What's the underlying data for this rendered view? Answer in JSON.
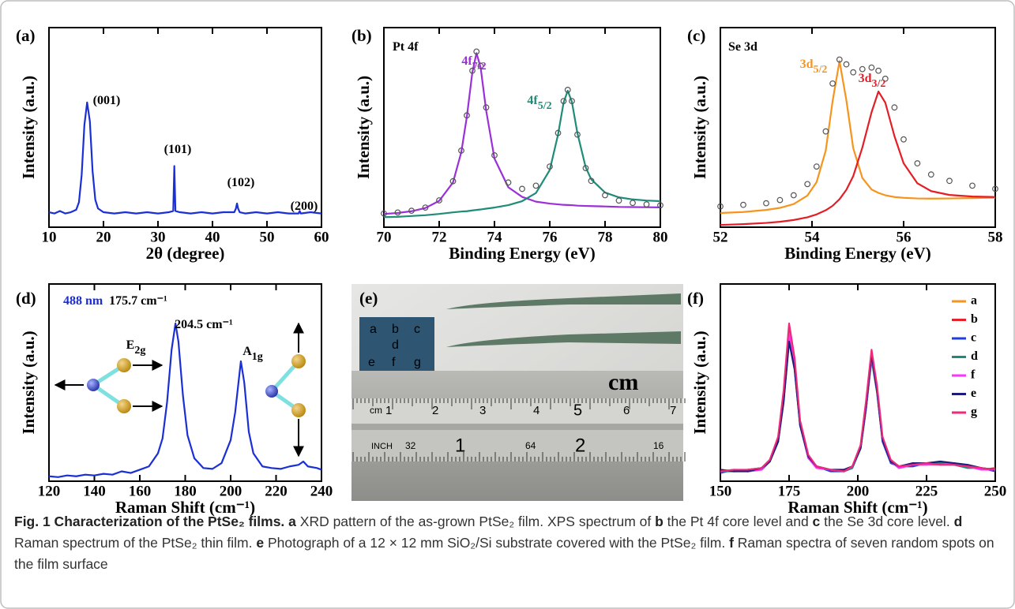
{
  "chart_data": [
    {
      "type": "line",
      "panel_label": "(a)",
      "x_label": "2θ (degree)",
      "y_label": "Intensity (a.u.)",
      "xlim": [
        10,
        60
      ],
      "xticks": [
        10,
        20,
        30,
        40,
        50,
        60
      ],
      "ylim": [
        0,
        1.6
      ],
      "x": [
        10,
        11,
        12,
        13,
        14,
        15,
        15.5,
        16,
        16.5,
        17,
        17.5,
        18,
        18.5,
        19,
        20,
        22,
        24,
        26,
        28,
        30,
        32,
        32.8,
        33,
        33.2,
        34,
        36,
        38,
        40,
        42,
        44,
        44.3,
        44.5,
        44.7,
        45,
        46,
        48,
        50,
        52,
        54,
        55.8,
        56,
        56.2,
        58,
        60
      ],
      "series": [
        {
          "color": "#1a2fd6",
          "values": [
            0.12,
            0.11,
            0.13,
            0.11,
            0.12,
            0.14,
            0.2,
            0.42,
            0.82,
            1.0,
            0.85,
            0.45,
            0.22,
            0.15,
            0.12,
            0.11,
            0.12,
            0.11,
            0.12,
            0.11,
            0.12,
            0.13,
            0.49,
            0.13,
            0.12,
            0.11,
            0.12,
            0.11,
            0.12,
            0.12,
            0.15,
            0.19,
            0.15,
            0.12,
            0.11,
            0.12,
            0.11,
            0.12,
            0.11,
            0.11,
            0.13,
            0.11,
            0.12,
            0.11
          ]
        }
      ],
      "annotations": [
        {
          "text": "(001)"
        },
        {
          "text": "(101)"
        },
        {
          "text": "(102)"
        },
        {
          "text": "(200)"
        }
      ]
    },
    {
      "type": "line",
      "panel_label": "(b)",
      "x_label": "Binding Energy (eV)",
      "y_label": "Intensity (a.u.)",
      "xlim": [
        70,
        80
      ],
      "xticks": [
        70,
        72,
        74,
        76,
        78,
        80
      ],
      "ylim": [
        0,
        1.25
      ],
      "x": [
        70,
        70.5,
        71,
        71.5,
        72,
        72.5,
        72.8,
        73,
        73.2,
        73.35,
        73.5,
        73.7,
        74,
        74.5,
        75,
        75.5,
        76,
        76.3,
        76.5,
        76.65,
        76.8,
        77,
        77.3,
        77.5,
        78,
        78.5,
        79,
        79.5,
        80
      ],
      "series": [
        {
          "color": "#9b30d9",
          "values": [
            0.083,
            0.089,
            0.1,
            0.12,
            0.165,
            0.28,
            0.47,
            0.69,
            0.97,
            1.09,
            1.0,
            0.73,
            0.43,
            0.25,
            0.19,
            0.16,
            0.148,
            0.143,
            0.14,
            0.139,
            0.138,
            0.135,
            0.133,
            0.132,
            0.13,
            0.127,
            0.126,
            0.125,
            0.124
          ]
        },
        {
          "color": "#1e8c78",
          "values": [
            0.063,
            0.065,
            0.07,
            0.075,
            0.083,
            0.093,
            0.098,
            0.1,
            0.105,
            0.108,
            0.111,
            0.116,
            0.123,
            0.138,
            0.163,
            0.214,
            0.358,
            0.58,
            0.78,
            0.855,
            0.785,
            0.589,
            0.375,
            0.3,
            0.217,
            0.187,
            0.174,
            0.167,
            0.163
          ]
        },
        {
          "color": "#555555",
          "style": "markers",
          "values": [
            0.086,
            0.092,
            0.103,
            0.123,
            0.168,
            0.288,
            0.48,
            0.7,
            0.98,
            1.1,
            1.01,
            0.75,
            0.45,
            0.28,
            0.24,
            0.26,
            0.38,
            0.59,
            0.79,
            0.86,
            0.79,
            0.58,
            0.37,
            0.29,
            0.2,
            0.167,
            0.152,
            0.143,
            0.137
          ]
        }
      ],
      "annotations": [
        {
          "text": "Pt 4f"
        },
        {
          "text": "4f",
          "sub": "7/2",
          "color": "#9b30d9"
        },
        {
          "text": "4f",
          "sub": "5/2",
          "color": "#1e8c78"
        }
      ]
    },
    {
      "type": "line",
      "panel_label": "(c)",
      "x_label": "Binding Energy (eV)",
      "y_label": "Intensity (a.u.)",
      "xlim": [
        52,
        58
      ],
      "xticks": [
        52,
        54,
        56,
        58
      ],
      "ylim": [
        0,
        1.25
      ],
      "x": [
        52,
        52.5,
        53,
        53.3,
        53.6,
        53.9,
        54.1,
        54.3,
        54.45,
        54.6,
        54.75,
        54.9,
        55.1,
        55.3,
        55.45,
        55.6,
        55.8,
        56,
        56.3,
        56.6,
        57,
        57.5,
        58
      ],
      "series": [
        {
          "color": "#f7941d",
          "values": [
            0.089,
            0.095,
            0.108,
            0.121,
            0.145,
            0.198,
            0.282,
            0.48,
            0.79,
            1.04,
            0.795,
            0.495,
            0.308,
            0.236,
            0.215,
            0.2,
            0.189,
            0.184,
            0.18,
            0.179,
            0.18,
            0.182,
            0.185
          ]
        },
        {
          "color": "#e41e26",
          "values": [
            0.014,
            0.019,
            0.027,
            0.034,
            0.045,
            0.062,
            0.08,
            0.106,
            0.134,
            0.175,
            0.234,
            0.32,
            0.5,
            0.72,
            0.85,
            0.78,
            0.57,
            0.4,
            0.275,
            0.226,
            0.202,
            0.192,
            0.189
          ]
        },
        {
          "color": "#555555",
          "style": "markers",
          "values": [
            0.13,
            0.14,
            0.15,
            0.17,
            0.2,
            0.27,
            0.38,
            0.6,
            0.9,
            1.05,
            1.02,
            0.97,
            0.99,
            1.0,
            0.98,
            0.93,
            0.75,
            0.55,
            0.4,
            0.33,
            0.29,
            0.26,
            0.24
          ]
        }
      ],
      "annotations": [
        {
          "text": "Se 3d"
        },
        {
          "text": "3d",
          "sub": "5/2",
          "color": "#f7941d"
        },
        {
          "text": "3d",
          "sub": "3/2",
          "color": "#e41e26"
        }
      ]
    },
    {
      "type": "line",
      "panel_label": "(d)",
      "x_label": "Raman Shift (cm⁻¹)",
      "y_label": "Intensity (a.u.)",
      "xlim": [
        120,
        240
      ],
      "xticks": [
        120,
        140,
        160,
        180,
        200,
        220,
        240
      ],
      "ylim": [
        0,
        1.2
      ],
      "x": [
        120,
        124,
        128,
        132,
        136,
        140,
        144,
        148,
        152,
        156,
        160,
        164,
        168,
        170,
        172,
        174,
        175.7,
        177,
        179,
        181,
        184,
        188,
        192,
        196,
        200,
        202,
        204.5,
        206,
        208,
        210,
        214,
        218,
        222,
        226,
        230,
        232,
        234,
        238,
        240
      ],
      "series": [
        {
          "color": "#1a2fd6",
          "values": [
            0.03,
            0.025,
            0.035,
            0.03,
            0.04,
            0.035,
            0.045,
            0.04,
            0.06,
            0.05,
            0.07,
            0.09,
            0.17,
            0.26,
            0.48,
            0.8,
            0.96,
            0.85,
            0.52,
            0.28,
            0.14,
            0.08,
            0.075,
            0.11,
            0.25,
            0.42,
            0.73,
            0.6,
            0.3,
            0.17,
            0.09,
            0.08,
            0.075,
            0.09,
            0.1,
            0.12,
            0.09,
            0.08,
            0.07
          ]
        }
      ],
      "annotations": [
        {
          "text": "488 nm",
          "color": "#1a2be0"
        },
        {
          "text": "175.7 cm⁻¹"
        },
        {
          "text": "E",
          "sub": "2g"
        },
        {
          "text": "204.5 cm⁻¹"
        },
        {
          "text": "A",
          "sub": "1g"
        }
      ]
    },
    {
      "type": "line",
      "panel_label": "(f)",
      "x_label": "Raman Shift (cm⁻¹)",
      "y_label": "Intensity (a.u.)",
      "xlim": [
        150,
        250
      ],
      "xticks": [
        150,
        175,
        200,
        225,
        250
      ],
      "ylim": [
        0,
        1.2
      ],
      "legend": "upper right",
      "x": [
        150,
        155,
        160,
        165,
        168,
        171,
        173,
        175,
        177,
        179,
        182,
        185,
        190,
        195,
        198,
        201,
        203,
        205,
        207,
        209,
        212,
        215,
        220,
        225,
        230,
        235,
        240,
        245,
        250
      ],
      "series": [
        {
          "name": "a",
          "color": "#f7941d",
          "values": [
            0.06,
            0.07,
            0.06,
            0.08,
            0.12,
            0.25,
            0.5,
            0.88,
            0.7,
            0.35,
            0.15,
            0.09,
            0.07,
            0.06,
            0.09,
            0.2,
            0.45,
            0.76,
            0.55,
            0.25,
            0.12,
            0.09,
            0.1,
            0.11,
            0.1,
            0.11,
            0.09,
            0.08,
            0.07
          ]
        },
        {
          "name": "b",
          "color": "#e8202a",
          "values": [
            0.07,
            0.06,
            0.07,
            0.08,
            0.13,
            0.26,
            0.53,
            0.92,
            0.72,
            0.36,
            0.15,
            0.08,
            0.07,
            0.07,
            0.09,
            0.21,
            0.47,
            0.78,
            0.56,
            0.26,
            0.12,
            0.08,
            0.1,
            0.1,
            0.11,
            0.1,
            0.09,
            0.07,
            0.08
          ]
        },
        {
          "name": "c",
          "color": "#1f3de0",
          "values": [
            0.05,
            0.07,
            0.06,
            0.07,
            0.12,
            0.24,
            0.49,
            0.86,
            0.69,
            0.34,
            0.14,
            0.09,
            0.06,
            0.06,
            0.08,
            0.2,
            0.44,
            0.75,
            0.54,
            0.24,
            0.11,
            0.09,
            0.09,
            0.11,
            0.1,
            0.1,
            0.09,
            0.08,
            0.06
          ]
        },
        {
          "name": "d",
          "color": "#1f8a7a",
          "values": [
            0.06,
            0.06,
            0.07,
            0.08,
            0.12,
            0.25,
            0.49,
            0.87,
            0.69,
            0.35,
            0.15,
            0.09,
            0.07,
            0.06,
            0.08,
            0.2,
            0.44,
            0.74,
            0.54,
            0.25,
            0.12,
            0.09,
            0.1,
            0.11,
            0.11,
            0.1,
            0.08,
            0.08,
            0.07
          ]
        },
        {
          "name": "f",
          "color": "#ff33ff",
          "values": [
            0.06,
            0.07,
            0.06,
            0.07,
            0.13,
            0.26,
            0.51,
            0.9,
            0.71,
            0.35,
            0.14,
            0.08,
            0.07,
            0.06,
            0.09,
            0.21,
            0.45,
            0.76,
            0.55,
            0.25,
            0.12,
            0.08,
            0.1,
            0.1,
            0.1,
            0.11,
            0.09,
            0.07,
            0.07
          ]
        },
        {
          "name": "e",
          "color": "#1c1c7a",
          "values": [
            0.07,
            0.06,
            0.06,
            0.08,
            0.12,
            0.24,
            0.48,
            0.85,
            0.68,
            0.34,
            0.15,
            0.09,
            0.07,
            0.07,
            0.09,
            0.2,
            0.46,
            0.77,
            0.55,
            0.25,
            0.12,
            0.09,
            0.11,
            0.11,
            0.12,
            0.11,
            0.1,
            0.08,
            0.07
          ]
        },
        {
          "name": "g",
          "color": "#ee2a7b",
          "values": [
            0.06,
            0.07,
            0.07,
            0.08,
            0.13,
            0.27,
            0.55,
            0.96,
            0.75,
            0.37,
            0.16,
            0.09,
            0.07,
            0.06,
            0.09,
            0.22,
            0.49,
            0.8,
            0.58,
            0.27,
            0.13,
            0.09,
            0.1,
            0.11,
            0.1,
            0.1,
            0.09,
            0.08,
            0.07
          ]
        }
      ],
      "annotations": []
    }
  ],
  "photo": {
    "panel_label": "(e)",
    "chip_labels": [
      "a",
      "b",
      "c",
      "d",
      "e",
      "f",
      "g"
    ],
    "unit": "cm",
    "cm_row": [
      "cm",
      "1",
      "2",
      "3",
      "4",
      "5",
      "6",
      "7"
    ],
    "inch_row": [
      "INCH",
      "32",
      "1",
      "64",
      "2",
      "16"
    ]
  },
  "caption": {
    "title": "Fig. 1 Characterization of the PtSe₂ films.",
    "runs": [
      {
        "label": "a"
      },
      {
        "text": " XRD pattern of the as-grown PtSe₂ film. XPS spectrum of "
      },
      {
        "label": "b"
      },
      {
        "text": " the Pt 4f core level and "
      },
      {
        "label": "c"
      },
      {
        "text": " the Se 3d core level. "
      },
      {
        "label": "d"
      },
      {
        "text": " Raman spectrum of the PtSe₂ thin film. "
      },
      {
        "label": "e"
      },
      {
        "text": " Photograph of a 12 × 12 mm SiO₂/Si substrate covered with the PtSe₂ film. "
      },
      {
        "label": "f"
      },
      {
        "text": " Raman spectra of seven random spots on the film surface"
      }
    ]
  }
}
